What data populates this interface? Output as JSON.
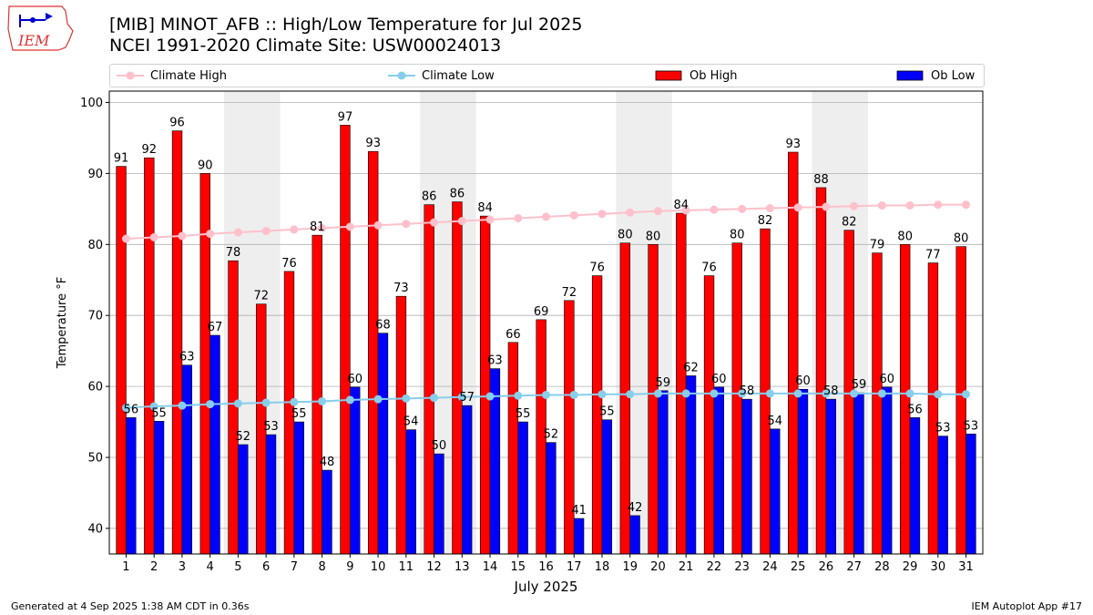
{
  "header": {
    "title_line1": "[MIB] MINOT_AFB :: High/Low Temperature for Jul 2025",
    "title_line2": "NCEI 1991-2020 Climate Site: USW00024013",
    "logo_text": "IEM"
  },
  "footer": {
    "generated": "Generated at 4 Sep 2025 1:38 AM CDT in 0.36s",
    "app": "IEM Autoplot App #17"
  },
  "legend": {
    "climate_high": "Climate High",
    "climate_low": "Climate Low",
    "ob_high": "Ob High",
    "ob_low": "Ob Low"
  },
  "colors": {
    "ob_high": "#ff0000",
    "ob_low": "#0000ff",
    "climate_high": "#ffc0cb",
    "climate_low": "#87ceeb",
    "weekend_band": "#eeeeee",
    "grid": "#b0b0b0"
  },
  "chart_data": {
    "type": "bar",
    "title": "[MIB] MINOT_AFB :: High/Low Temperature for Jul 2025",
    "xlabel": "July 2025",
    "ylabel": "Temperature °F",
    "ylim": [
      36.4,
      101.6
    ],
    "yticks": [
      40,
      50,
      60,
      70,
      80,
      90,
      100
    ],
    "grid": true,
    "legend_position": "top",
    "categories": [
      1,
      2,
      3,
      4,
      5,
      6,
      7,
      8,
      9,
      10,
      11,
      12,
      13,
      14,
      15,
      16,
      17,
      18,
      19,
      20,
      21,
      22,
      23,
      24,
      25,
      26,
      27,
      28,
      29,
      30,
      31
    ],
    "weekend_days": [
      5,
      6,
      12,
      13,
      19,
      20,
      26,
      27
    ],
    "series": [
      {
        "name": "Ob High",
        "kind": "bar",
        "values": [
          91,
          92,
          96,
          90,
          78,
          72,
          76,
          81,
          97,
          93,
          73,
          86,
          86,
          84,
          66,
          69,
          72,
          76,
          80,
          80,
          84,
          76,
          80,
          82,
          93,
          88,
          82,
          79,
          80,
          77,
          80
        ],
        "heights": [
          91.0,
          92.2,
          96.0,
          90.0,
          77.7,
          71.6,
          76.2,
          81.3,
          96.8,
          93.1,
          72.7,
          85.6,
          86.0,
          84.0,
          66.2,
          69.4,
          72.1,
          75.6,
          80.2,
          80.0,
          84.4,
          75.6,
          80.2,
          82.2,
          93.0,
          88.0,
          82.0,
          78.8,
          80.0,
          77.4,
          79.7
        ],
        "labels": [
          "91",
          "92",
          "96",
          "90",
          "78",
          "72",
          "76",
          "81",
          "97",
          "93",
          "73",
          "86",
          "86",
          "84",
          "66",
          "69",
          "72",
          "76",
          "80",
          "80",
          "84",
          "76",
          "80",
          "82",
          "93",
          "88",
          "82",
          "79",
          "80",
          "77",
          "80"
        ]
      },
      {
        "name": "Ob Low",
        "kind": "bar",
        "values": [
          56,
          55,
          63,
          67,
          52,
          53,
          55,
          48,
          60,
          68,
          54,
          50,
          57,
          63,
          55,
          52,
          41,
          55,
          42,
          59,
          62,
          60,
          58,
          54,
          60,
          58,
          59,
          60,
          56,
          53,
          53
        ],
        "heights": [
          55.6,
          55.1,
          63.0,
          67.2,
          51.8,
          53.2,
          55.0,
          48.2,
          59.9,
          67.5,
          53.9,
          50.5,
          57.3,
          62.5,
          55.0,
          52.1,
          41.4,
          55.3,
          41.8,
          59.4,
          61.5,
          59.9,
          58.2,
          54.0,
          59.6,
          58.2,
          59.1,
          59.9,
          55.6,
          53.0,
          53.3
        ],
        "labels": [
          "56",
          "55",
          "63",
          "67",
          "52",
          "53",
          "55",
          "48",
          "60",
          "68",
          "54",
          "50",
          "57",
          "63",
          "55",
          "52",
          "41",
          "55",
          "42",
          "59",
          "62",
          "60",
          "58",
          "54",
          "60",
          "58",
          "59",
          "60",
          "56",
          "53",
          "53"
        ]
      },
      {
        "name": "Climate High",
        "kind": "line",
        "values": [
          80.8,
          81.0,
          81.2,
          81.5,
          81.7,
          81.9,
          82.1,
          82.3,
          82.5,
          82.7,
          82.9,
          83.1,
          83.3,
          83.5,
          83.7,
          83.9,
          84.1,
          84.3,
          84.5,
          84.7,
          84.8,
          84.9,
          85.0,
          85.1,
          85.2,
          85.3,
          85.4,
          85.5,
          85.5,
          85.6,
          85.6
        ]
      },
      {
        "name": "Climate Low",
        "kind": "line",
        "values": [
          57.0,
          57.2,
          57.3,
          57.5,
          57.6,
          57.7,
          57.8,
          57.9,
          58.1,
          58.2,
          58.3,
          58.4,
          58.5,
          58.6,
          58.7,
          58.8,
          58.8,
          58.9,
          58.9,
          59.0,
          59.0,
          59.0,
          59.0,
          59.0,
          59.0,
          59.0,
          59.0,
          59.0,
          59.0,
          58.9,
          58.9
        ]
      }
    ]
  }
}
